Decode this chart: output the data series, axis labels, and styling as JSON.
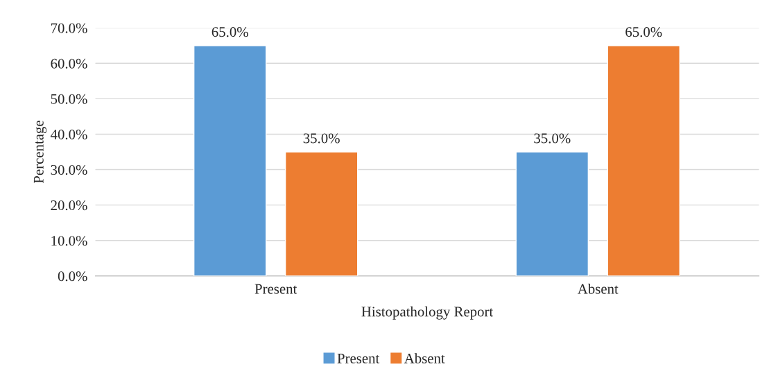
{
  "chart_data": {
    "type": "bar",
    "xlabel": "Histopathology Report",
    "ylabel": "Percentage",
    "categories": [
      "Present",
      "Absent"
    ],
    "series": [
      {
        "name": "Present",
        "color": "#5b9bd5",
        "values": [
          65,
          35
        ],
        "value_labels": [
          "65.0%",
          "35.0%"
        ]
      },
      {
        "name": "Absent",
        "color": "#ed7d31",
        "values": [
          35,
          65
        ],
        "value_labels": [
          "35.0%",
          "65.0%"
        ]
      }
    ],
    "ylim": [
      0,
      70
    ],
    "yticks": [
      {
        "value": 0,
        "label": "0.0%"
      },
      {
        "value": 10,
        "label": "10.0%"
      },
      {
        "value": 20,
        "label": "20.0%"
      },
      {
        "value": 30,
        "label": "30.0%"
      },
      {
        "value": 40,
        "label": "40.0%"
      },
      {
        "value": 50,
        "label": "50.0%"
      },
      {
        "value": 60,
        "label": "60.0%"
      },
      {
        "value": 70,
        "label": "70.0%"
      }
    ],
    "grid": "y",
    "legend": "bottom"
  }
}
